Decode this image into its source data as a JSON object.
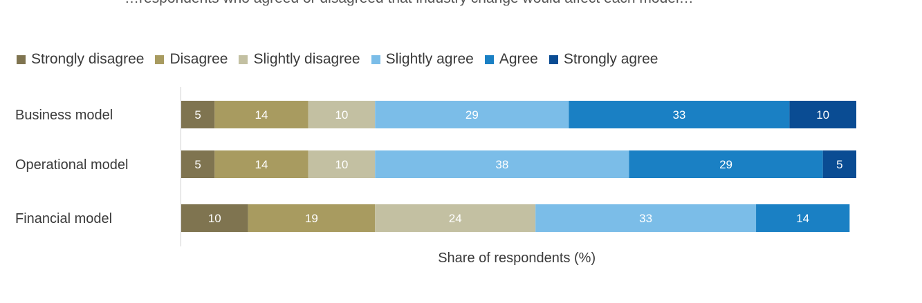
{
  "header": {
    "partial_text": "…respondents who agreed or disagreed that industry change would affect each model…"
  },
  "chart_data": {
    "type": "bar",
    "orientation": "horizontal",
    "stacked": true,
    "categories": [
      "Business model",
      "Operational model",
      "Financial model"
    ],
    "series": [
      {
        "name": "Strongly disagree",
        "color": "#7f7450",
        "values": [
          5,
          5,
          10
        ]
      },
      {
        "name": "Disagree",
        "color": "#a89b60",
        "values": [
          14,
          14,
          19
        ]
      },
      {
        "name": "Slightly disagree",
        "color": "#c3c0a2",
        "values": [
          10,
          10,
          24
        ]
      },
      {
        "name": "Slightly agree",
        "color": "#7bbde8",
        "values": [
          29,
          38,
          33
        ]
      },
      {
        "name": "Agree",
        "color": "#1a80c4",
        "values": [
          33,
          29,
          14
        ]
      },
      {
        "name": "Strongly agree",
        "color": "#0a4c93",
        "values": [
          10,
          5,
          0
        ]
      }
    ],
    "xlabel": "Share of respondents (%)",
    "ylabel": "",
    "xlim": [
      0,
      101
    ],
    "legend_position": "top-left",
    "grid": false
  }
}
